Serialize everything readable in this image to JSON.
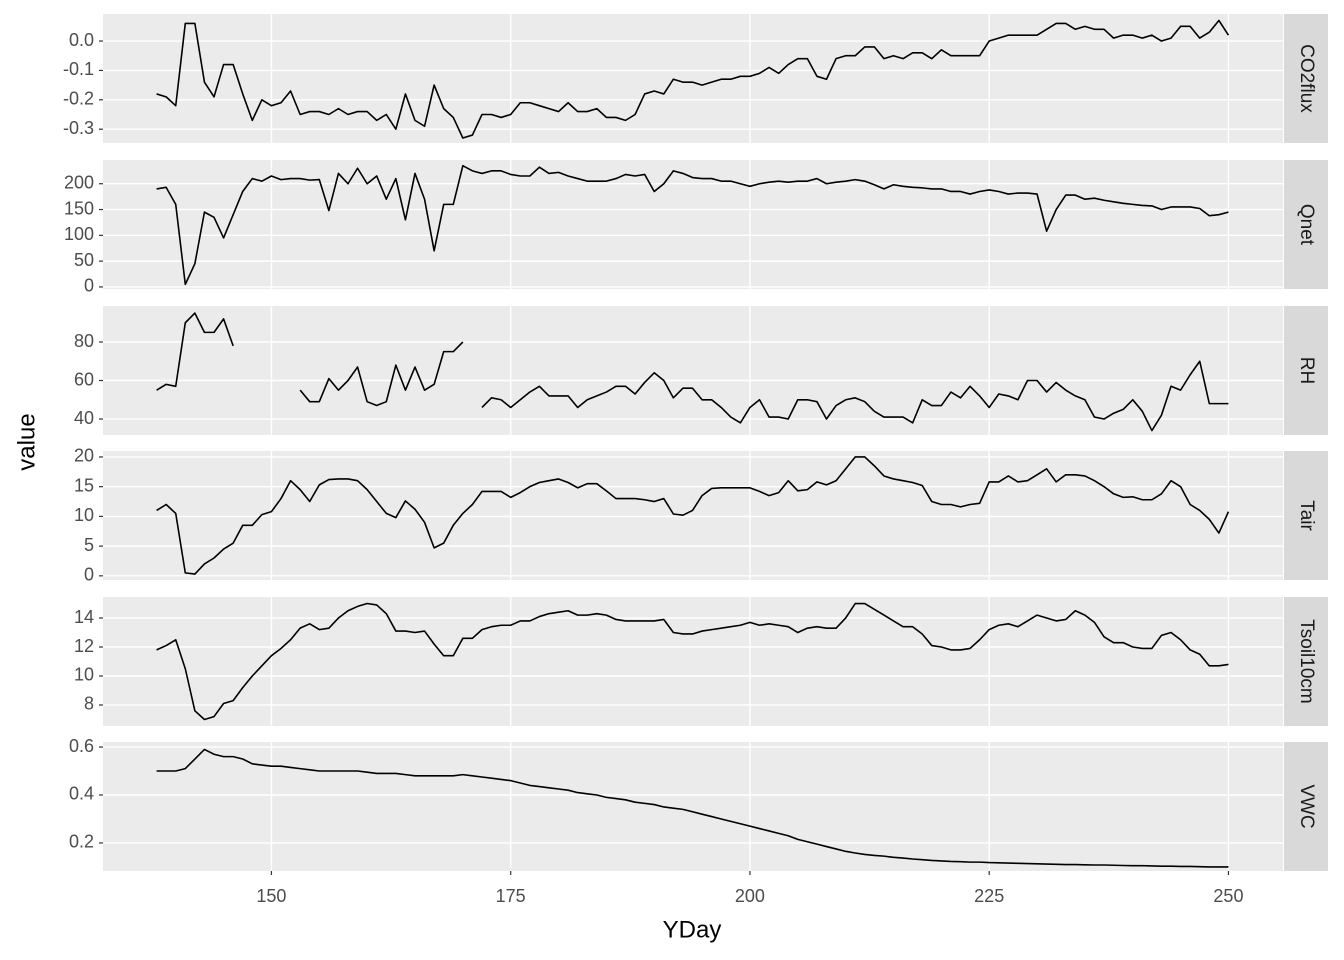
{
  "chart_data": {
    "type": "line",
    "x_label": "YDay",
    "y_label": "value",
    "grid": true,
    "x": [
      138,
      139,
      140,
      141,
      142,
      143,
      144,
      145,
      146,
      147,
      148,
      149,
      150,
      151,
      152,
      153,
      154,
      155,
      156,
      157,
      158,
      159,
      160,
      161,
      162,
      163,
      164,
      165,
      166,
      167,
      168,
      169,
      170,
      171,
      172,
      173,
      174,
      175,
      176,
      177,
      178,
      179,
      180,
      181,
      182,
      183,
      184,
      185,
      186,
      187,
      188,
      189,
      190,
      191,
      192,
      193,
      194,
      195,
      196,
      197,
      198,
      199,
      200,
      201,
      202,
      203,
      204,
      205,
      206,
      207,
      208,
      209,
      210,
      211,
      212,
      213,
      214,
      215,
      216,
      217,
      218,
      219,
      220,
      221,
      222,
      223,
      224,
      225,
      226,
      227,
      228,
      229,
      230,
      231,
      232,
      233,
      234,
      235,
      236,
      237,
      238,
      239,
      240,
      241,
      242,
      243,
      244,
      245,
      246,
      247,
      248,
      249,
      250
    ],
    "xlim": [
      132.4,
      255.7
    ],
    "xticks": [
      150,
      175,
      200,
      225,
      250
    ],
    "series": [
      {
        "name": "CO2flux",
        "color": "#000000",
        "ylim": [
          -0.347,
          0.092
        ],
        "yticks": [
          -0.3,
          -0.2,
          -0.1,
          {
            "value": 0,
            "label": "0.0"
          }
        ],
        "values": [
          -0.18,
          -0.19,
          -0.22,
          0.06,
          0.06,
          -0.14,
          -0.19,
          -0.08,
          -0.08,
          -0.18,
          -0.27,
          -0.2,
          -0.22,
          -0.21,
          -0.17,
          -0.25,
          -0.24,
          -0.24,
          -0.25,
          -0.23,
          -0.25,
          -0.24,
          -0.24,
          -0.27,
          -0.25,
          -0.3,
          -0.18,
          -0.27,
          -0.29,
          -0.15,
          -0.23,
          -0.26,
          -0.33,
          -0.32,
          -0.25,
          -0.25,
          -0.26,
          -0.25,
          -0.21,
          -0.21,
          -0.22,
          -0.23,
          -0.24,
          -0.21,
          -0.24,
          -0.24,
          -0.23,
          -0.26,
          -0.26,
          -0.27,
          -0.25,
          -0.18,
          -0.17,
          -0.18,
          -0.13,
          -0.14,
          -0.14,
          -0.15,
          -0.14,
          -0.13,
          -0.13,
          -0.12,
          -0.12,
          -0.11,
          -0.09,
          -0.11,
          -0.08,
          -0.06,
          -0.06,
          -0.12,
          -0.13,
          -0.06,
          -0.05,
          -0.05,
          -0.02,
          -0.02,
          -0.06,
          -0.05,
          -0.06,
          -0.04,
          -0.04,
          -0.06,
          -0.03,
          -0.05,
          -0.05,
          -0.05,
          -0.05,
          0,
          0.01,
          0.02,
          0.02,
          0.02,
          0.02,
          0.04,
          0.06,
          0.06,
          0.04,
          0.05,
          0.04,
          0.04,
          0.01,
          0.02,
          0.02,
          0.01,
          0.02,
          0,
          0.01,
          0.05,
          0.05,
          0.01,
          0.03,
          0.07,
          0.02
        ]
      },
      {
        "name": "Qnet",
        "color": "#000000",
        "ylim": [
          -4,
          246
        ],
        "yticks": [
          0,
          50,
          100,
          150,
          200
        ],
        "values": [
          190,
          193,
          160,
          5,
          45,
          145,
          135,
          95,
          140,
          185,
          210,
          205,
          215,
          208,
          210,
          210,
          207,
          208,
          148,
          220,
          200,
          230,
          200,
          215,
          170,
          210,
          130,
          220,
          170,
          70,
          160,
          160,
          235,
          225,
          220,
          225,
          225,
          218,
          215,
          215,
          232,
          220,
          222,
          215,
          210,
          205,
          205,
          205,
          210,
          218,
          215,
          218,
          185,
          200,
          225,
          220,
          212,
          210,
          210,
          205,
          205,
          200,
          195,
          200,
          203,
          205,
          203,
          205,
          205,
          210,
          200,
          203,
          205,
          208,
          205,
          198,
          190,
          198,
          195,
          193,
          192,
          190,
          190,
          185,
          185,
          180,
          185,
          188,
          185,
          180,
          182,
          182,
          180,
          108,
          150,
          178,
          178,
          170,
          172,
          168,
          165,
          162,
          160,
          158,
          157,
          150,
          155,
          155,
          155,
          152,
          138,
          140,
          145
        ]
      },
      {
        "name": "RH",
        "color": "#000000",
        "ylim": [
          31.7,
          98.7
        ],
        "yticks": [
          40,
          60,
          80
        ],
        "values": [
          55,
          58,
          57,
          90,
          95,
          85,
          85,
          92,
          78,
          null,
          null,
          null,
          null,
          null,
          null,
          55,
          49,
          49,
          61,
          55,
          60,
          67,
          49,
          47,
          49,
          68,
          55,
          67,
          55,
          58,
          75,
          75,
          80,
          null,
          46,
          51,
          50,
          46,
          50,
          54,
          57,
          52,
          52,
          52,
          46,
          50,
          52,
          54,
          57,
          57,
          53,
          59,
          64,
          60,
          51,
          56,
          56,
          50,
          50,
          46,
          41,
          38,
          46,
          50,
          41,
          41,
          40,
          50,
          50,
          49,
          40,
          47,
          50,
          51,
          49,
          44,
          41,
          41,
          41,
          38,
          50,
          47,
          47,
          54,
          51,
          57,
          52,
          46,
          53,
          52,
          50,
          60,
          60,
          54,
          59,
          55,
          52,
          50,
          41,
          40,
          43,
          45,
          50,
          44,
          34,
          42,
          57,
          55,
          63,
          70,
          48,
          48,
          48
        ]
      },
      {
        "name": "Tair",
        "color": "#000000",
        "ylim": [
          -0.7,
          21
        ],
        "yticks": [
          0,
          5,
          10,
          15,
          20
        ],
        "values": [
          11,
          12,
          10.5,
          0.5,
          0.3,
          2,
          3,
          4.5,
          5.5,
          8.5,
          8.5,
          10.3,
          10.8,
          13,
          16,
          14.5,
          12.5,
          15.3,
          16.2,
          16.3,
          16.3,
          16,
          14.5,
          12.5,
          10.5,
          9.8,
          12.6,
          11.2,
          9,
          4.7,
          5.5,
          8.5,
          10.5,
          12,
          14.2,
          14.2,
          14.2,
          13.2,
          14,
          15,
          15.7,
          16,
          16.3,
          15.7,
          14.8,
          15.5,
          15.5,
          14.3,
          13,
          13,
          13,
          12.8,
          12.5,
          13,
          10.4,
          10.2,
          11,
          13.5,
          14.7,
          14.8,
          14.8,
          14.8,
          14.8,
          14.2,
          13.5,
          14,
          16,
          14.3,
          14.5,
          15.8,
          15.3,
          16,
          18,
          20,
          20,
          18.5,
          16.8,
          16.3,
          16,
          15.7,
          15.2,
          12.5,
          12,
          12,
          11.6,
          12,
          12.2,
          15.8,
          15.8,
          16.8,
          15.8,
          16,
          17,
          18,
          15.8,
          17,
          17,
          16.8,
          16,
          15,
          13.8,
          13.2,
          13.3,
          12.8,
          12.8,
          13.8,
          16,
          15,
          12,
          11,
          9.5,
          7.2,
          10.8
        ]
      },
      {
        "name": "Tsoil10cm",
        "color": "#000000",
        "ylim": [
          6.55,
          15.45
        ],
        "yticks": [
          8,
          10,
          12,
          14
        ],
        "values": [
          11.8,
          12.1,
          12.5,
          10.5,
          7.6,
          7,
          7.2,
          8.1,
          8.3,
          9.2,
          10,
          10.7,
          11.4,
          11.9,
          12.5,
          13.3,
          13.6,
          13.2,
          13.3,
          14,
          14.5,
          14.8,
          15,
          14.9,
          14.3,
          13.1,
          13.1,
          13,
          13.1,
          12.2,
          11.4,
          11.4,
          12.6,
          12.6,
          13.2,
          13.4,
          13.5,
          13.5,
          13.8,
          13.8,
          14.1,
          14.3,
          14.4,
          14.5,
          14.2,
          14.2,
          14.3,
          14.2,
          13.9,
          13.8,
          13.8,
          13.8,
          13.8,
          13.9,
          13,
          12.9,
          12.9,
          13.1,
          13.2,
          13.3,
          13.4,
          13.5,
          13.7,
          13.5,
          13.6,
          13.5,
          13.4,
          13,
          13.3,
          13.4,
          13.3,
          13.3,
          14,
          15,
          15,
          14.6,
          14.2,
          13.8,
          13.4,
          13.4,
          12.9,
          12.1,
          12,
          11.8,
          11.8,
          11.9,
          12.5,
          13.2,
          13.5,
          13.6,
          13.4,
          13.8,
          14.2,
          14,
          13.8,
          13.9,
          14.5,
          14.2,
          13.7,
          12.7,
          12.3,
          12.3,
          12,
          11.9,
          11.9,
          12.8,
          13,
          12.5,
          11.8,
          11.5,
          10.7,
          10.7,
          10.8
        ]
      },
      {
        "name": "VWC",
        "color": "#000000",
        "ylim": [
          0.083,
          0.621
        ],
        "yticks": [
          0.2,
          0.4,
          0.6
        ],
        "values": [
          0.5,
          0.5,
          0.5,
          0.51,
          0.55,
          0.59,
          0.57,
          0.56,
          0.56,
          0.55,
          0.53,
          0.525,
          0.52,
          0.52,
          0.515,
          0.51,
          0.505,
          0.5,
          0.5,
          0.5,
          0.5,
          0.5,
          0.495,
          0.49,
          0.49,
          0.49,
          0.485,
          0.48,
          0.48,
          0.48,
          0.48,
          0.48,
          0.485,
          0.48,
          0.475,
          0.47,
          0.465,
          0.46,
          0.45,
          0.44,
          0.435,
          0.43,
          0.425,
          0.42,
          0.41,
          0.405,
          0.4,
          0.39,
          0.385,
          0.38,
          0.37,
          0.365,
          0.36,
          0.35,
          0.345,
          0.34,
          0.33,
          0.32,
          0.31,
          0.3,
          0.29,
          0.28,
          0.27,
          0.26,
          0.25,
          0.24,
          0.23,
          0.215,
          0.205,
          0.195,
          0.185,
          0.175,
          0.165,
          0.158,
          0.152,
          0.148,
          0.145,
          0.14,
          0.137,
          0.133,
          0.13,
          0.127,
          0.125,
          0.123,
          0.122,
          0.12,
          0.12,
          0.118,
          0.117,
          0.116,
          0.115,
          0.114,
          0.113,
          0.112,
          0.111,
          0.11,
          0.11,
          0.109,
          0.108,
          0.108,
          0.107,
          0.106,
          0.105,
          0.105,
          0.104,
          0.103,
          0.103,
          0.102,
          0.102,
          0.101,
          0.1,
          0.1,
          0.1
        ]
      }
    ]
  }
}
